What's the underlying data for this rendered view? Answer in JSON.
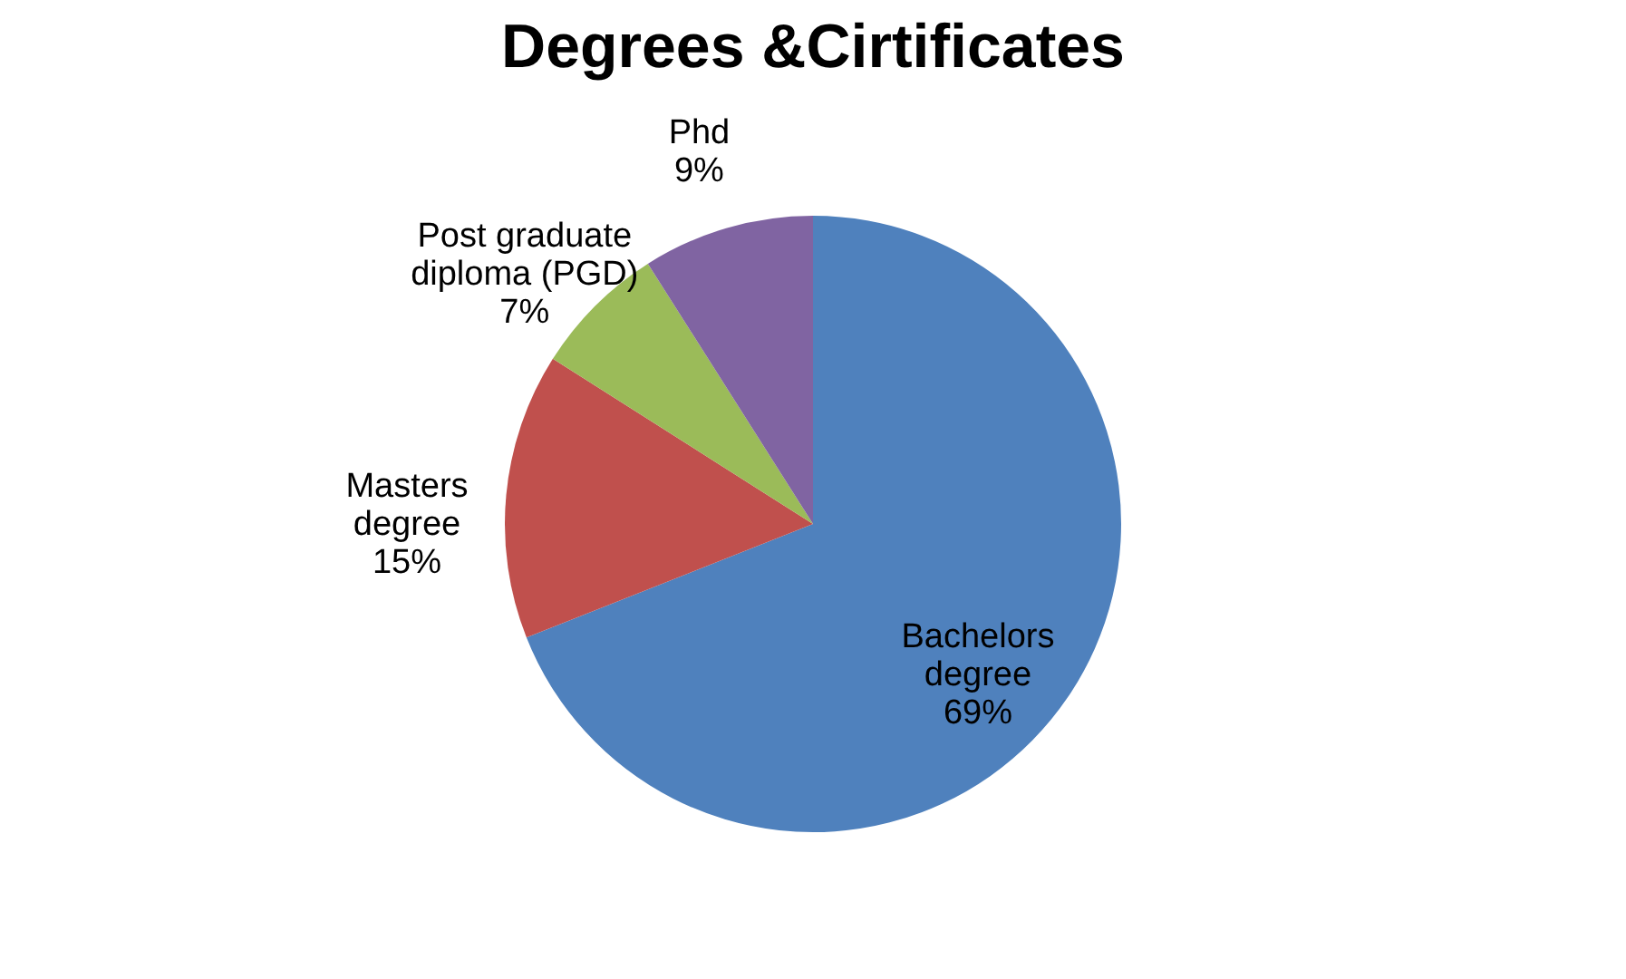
{
  "chart_data": {
    "type": "pie",
    "title": "Degrees &Cirtificates",
    "categories": [
      "Bachelors degree",
      "Masters degree",
      "Post graduate diploma (PGD)",
      "Phd"
    ],
    "values": [
      69,
      15,
      7,
      9
    ],
    "value_labels": [
      "69%",
      "15%",
      "7%",
      "9%"
    ],
    "colors": [
      "#4f81bd",
      "#c0504d",
      "#9bbb59",
      "#8064a2"
    ],
    "legend": false
  }
}
